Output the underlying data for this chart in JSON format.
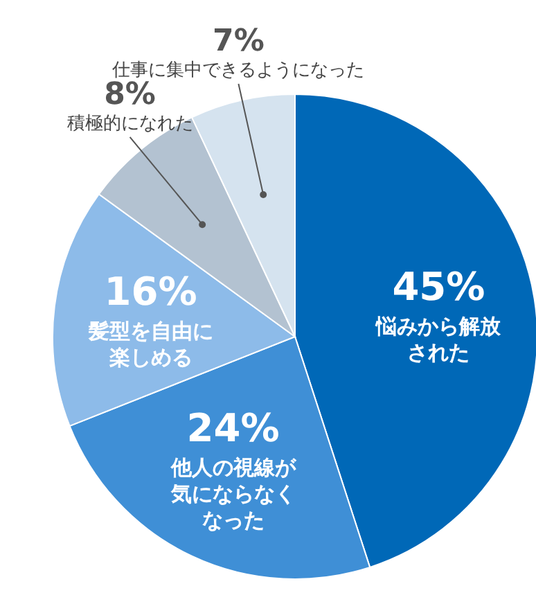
{
  "chart_data": {
    "type": "pie",
    "categories": [
      "悩みから解放された",
      "他人の視線が気にならなくなった",
      "髪型を自由に楽しめる",
      "積極的になれた",
      "仕事に集中できるようになった"
    ],
    "value_labels": [
      "45%",
      "24%",
      "16%",
      "8%",
      "7%"
    ],
    "values": [
      45,
      24,
      16,
      8,
      7
    ],
    "colors": [
      "#0068b7",
      "#3f8fd6",
      "#8dbbe9",
      "#b3c2d1",
      "#d5e3ef"
    ],
    "legend": false
  }
}
